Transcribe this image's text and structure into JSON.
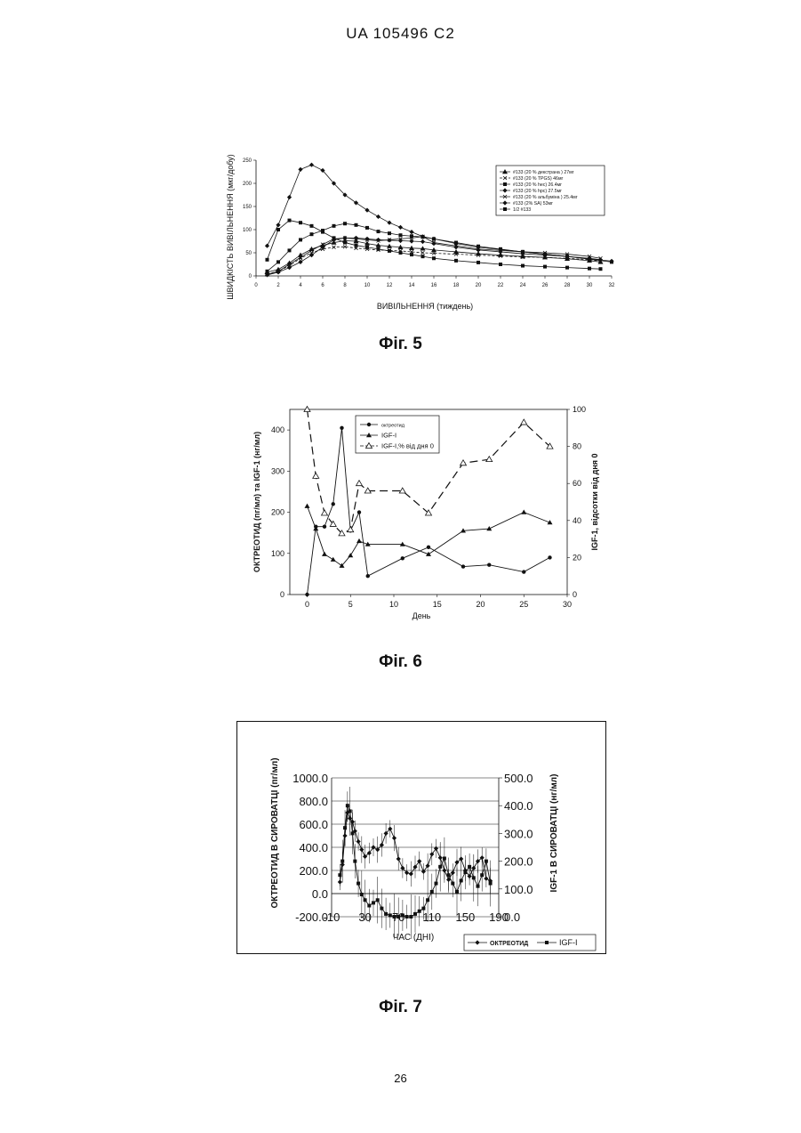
{
  "header": "UA    105496    C2",
  "page_number": "26",
  "figures": [
    {
      "label": "Фіг. 5"
    },
    {
      "label": "Фіг. 6"
    },
    {
      "label": "Фіг. 7"
    }
  ],
  "chart_data": [
    {
      "type": "line",
      "xlabel": "ВИВІЛЬНЕННЯ (тиждень)",
      "ylabel": "ШВИДКІСТЬ ВИВІЛЬНЕННЯ (мкг/добу)",
      "xlim": [
        0,
        32
      ],
      "ylim": [
        0,
        250
      ],
      "xticks": [
        "0",
        "2",
        "4",
        "6",
        "8",
        "10",
        "12",
        "14",
        "16",
        "18",
        "20",
        "22",
        "24",
        "26",
        "28",
        "30",
        "32"
      ],
      "yticks": [
        "0",
        "50",
        "100",
        "150",
        "200",
        "250"
      ],
      "legend_position": "top-right",
      "series": [
        {
          "name": "#133 (20 % декстрана ) 27мг",
          "x": [
            1,
            2,
            3,
            4,
            5,
            6,
            7,
            8,
            9,
            10,
            11,
            12,
            13,
            14,
            15,
            16,
            18,
            20,
            22,
            24,
            26,
            28,
            30,
            31
          ],
          "y": [
            8,
            14,
            28,
            45,
            58,
            66,
            72,
            76,
            75,
            70,
            66,
            64,
            62,
            60,
            59,
            56,
            52,
            48,
            45,
            42,
            40,
            37,
            33,
            30
          ]
        },
        {
          "name": "#133 (20 % TPGS) 46мг",
          "x": [
            1,
            2,
            3,
            4,
            5,
            6,
            7,
            8,
            9,
            10,
            11,
            12,
            13,
            14,
            15,
            16,
            18,
            20,
            22,
            24,
            26,
            28,
            30,
            31
          ],
          "y": [
            4,
            10,
            22,
            38,
            50,
            58,
            62,
            63,
            60,
            58,
            56,
            55,
            54,
            52,
            50,
            49,
            47,
            45,
            43,
            41,
            40,
            38,
            35,
            32
          ]
        },
        {
          "name": "#133 (20 % hec) 26.4мг",
          "x": [
            1,
            2,
            3,
            4,
            5,
            6,
            7,
            8,
            9,
            10,
            11,
            12,
            13,
            14,
            15,
            16,
            18,
            20,
            22,
            24,
            26,
            28,
            30,
            31
          ],
          "y": [
            35,
            100,
            120,
            115,
            108,
            95,
            82,
            72,
            66,
            62,
            58,
            54,
            50,
            46,
            42,
            38,
            33,
            29,
            25,
            22,
            20,
            18,
            16,
            15
          ]
        },
        {
          "name": "#133 (20 % hpc) 27.5мг",
          "x": [
            1,
            2,
            3,
            4,
            5,
            6,
            7,
            8,
            9,
            10,
            11,
            12,
            13,
            14,
            15,
            16,
            18,
            20,
            22,
            24,
            26,
            28,
            30,
            31
          ],
          "y": [
            2,
            8,
            18,
            30,
            45,
            62,
            78,
            82,
            82,
            80,
            78,
            77,
            76,
            75,
            74,
            70,
            62,
            56,
            52,
            48,
            45,
            42,
            38,
            35
          ]
        },
        {
          "name": "#133 (20 % альбуміна ) 25.4мг",
          "x": [
            1,
            2,
            3,
            4,
            5,
            6,
            7,
            8,
            9,
            10,
            11,
            12,
            13,
            14,
            15,
            16,
            18,
            20,
            22,
            24,
            26,
            28,
            30,
            31
          ],
          "y": [
            3,
            10,
            25,
            40,
            55,
            68,
            80,
            82,
            80,
            78,
            76,
            78,
            80,
            82,
            85,
            72,
            65,
            58,
            55,
            52,
            50,
            47,
            42,
            38
          ]
        },
        {
          "name": "#133 (2% SA) 53мг",
          "x": [
            1,
            2,
            3,
            4,
            5,
            6,
            7,
            8,
            9,
            10,
            11,
            12,
            13,
            14,
            15,
            16,
            18,
            20,
            22,
            24,
            26,
            28,
            30,
            32
          ],
          "y": [
            65,
            110,
            170,
            230,
            240,
            228,
            200,
            175,
            158,
            142,
            128,
            115,
            105,
            95,
            85,
            80,
            70,
            62,
            57,
            52,
            47,
            42,
            37,
            32
          ]
        },
        {
          "name": "1/2 #133",
          "x": [
            1,
            2,
            3,
            4,
            5,
            6,
            7,
            8,
            9,
            10,
            11,
            12,
            13,
            14,
            15,
            16,
            18,
            20,
            22,
            24,
            26,
            28,
            30,
            32
          ],
          "y": [
            10,
            30,
            55,
            78,
            90,
            98,
            108,
            113,
            110,
            104,
            96,
            92,
            88,
            86,
            84,
            80,
            72,
            64,
            58,
            52,
            47,
            42,
            36,
            30
          ]
        }
      ]
    },
    {
      "type": "line",
      "xlabel": "День",
      "ylabel": "ОКТРЕОТИД (пг/мл) та IGF-1 (нг/мл)",
      "y2label": "IGF-1, відсотки від дня 0",
      "xlim": [
        -2,
        30
      ],
      "ylim": [
        0,
        450
      ],
      "y2lim": [
        0,
        100
      ],
      "xticks": [
        "0",
        "5",
        "10",
        "15",
        "20",
        "25",
        "30"
      ],
      "yticks": [
        "0",
        "100",
        "200",
        "300",
        "400"
      ],
      "y2ticks": [
        "0",
        "20",
        "40",
        "60",
        "80",
        "100"
      ],
      "legend_position": "top-center",
      "series": [
        {
          "name": "октреотид",
          "axis": "left",
          "x": [
            0,
            1,
            2,
            3,
            4,
            5,
            6,
            7,
            11,
            14,
            18,
            21,
            25,
            28
          ],
          "y": [
            0,
            165,
            165,
            220,
            405,
            155,
            200,
            45,
            88,
            115,
            68,
            72,
            55,
            90
          ]
        },
        {
          "name": "IGF-I",
          "axis": "left",
          "x": [
            0,
            1,
            2,
            3,
            4,
            5,
            6,
            7,
            11,
            14,
            18,
            21,
            25,
            28
          ],
          "y": [
            215,
            160,
            98,
            85,
            70,
            95,
            130,
            122,
            122,
            98,
            155,
            160,
            200,
            175
          ]
        },
        {
          "name": "IGF-I,% від дня 0",
          "axis": "right",
          "x": [
            0,
            1,
            2,
            3,
            4,
            5,
            6,
            7,
            11,
            14,
            18,
            21,
            25,
            28
          ],
          "y": [
            100,
            64,
            44,
            38,
            33,
            35,
            60,
            56,
            56,
            44,
            71,
            73,
            93,
            80
          ]
        }
      ]
    },
    {
      "type": "line",
      "xlabel": "ЧАС (ДНІ)",
      "ylabel": "ОКТРЕОТИД В СИРОВАТЦІ (пг/мл)",
      "y2label": "IGF-1 В СИРОВАТЦІ (нг/мл)",
      "xlim": [
        -10,
        190
      ],
      "ylim": [
        -200,
        1000
      ],
      "y2lim": [
        0,
        500
      ],
      "xticks": [
        "-10",
        "10",
        "30",
        "50",
        "70",
        "90",
        "110",
        "130",
        "150",
        "170",
        "190"
      ],
      "yticks": [
        "-200.0",
        "0.0",
        "200.0",
        "400.0",
        "600.0",
        "800.0",
        "1000.0"
      ],
      "y2ticks": [
        "0.0",
        "100.0",
        "200.0",
        "300.0",
        "400.0",
        "500.0"
      ],
      "legend_position": "bottom-right",
      "series": [
        {
          "name": "ОКТРЕОТИД",
          "axis": "left",
          "x": [
            0,
            3,
            6,
            9,
            12,
            15,
            18,
            22,
            26,
            30,
            35,
            40,
            45,
            50,
            55,
            60,
            65,
            70,
            75,
            80,
            85,
            90,
            95,
            100,
            105,
            110,
            115,
            120,
            125,
            130,
            135,
            140,
            145,
            150,
            155,
            160,
            165,
            170,
            175,
            180
          ],
          "y": [
            100,
            250,
            500,
            700,
            650,
            620,
            540,
            450,
            380,
            320,
            350,
            400,
            380,
            420,
            520,
            560,
            480,
            300,
            220,
            180,
            170,
            230,
            280,
            190,
            240,
            340,
            390,
            310,
            200,
            120,
            180,
            270,
            300,
            200,
            150,
            220,
            280,
            310,
            130,
            110
          ]
        },
        {
          "name": "IGF-I",
          "axis": "right",
          "x": [
            0,
            3,
            6,
            9,
            12,
            15,
            18,
            22,
            26,
            30,
            35,
            40,
            45,
            50,
            55,
            60,
            65,
            70,
            75,
            80,
            85,
            90,
            95,
            100,
            105,
            110,
            115,
            120,
            125,
            130,
            135,
            140,
            145,
            150,
            155,
            160,
            165,
            170,
            175,
            180
          ],
          "y": [
            150,
            200,
            320,
            400,
            380,
            300,
            200,
            120,
            80,
            60,
            40,
            50,
            60,
            30,
            10,
            5,
            0,
            0,
            5,
            0,
            0,
            10,
            20,
            30,
            60,
            90,
            120,
            180,
            210,
            150,
            120,
            90,
            130,
            160,
            180,
            140,
            110,
            150,
            200,
            120
          ]
        }
      ]
    }
  ]
}
